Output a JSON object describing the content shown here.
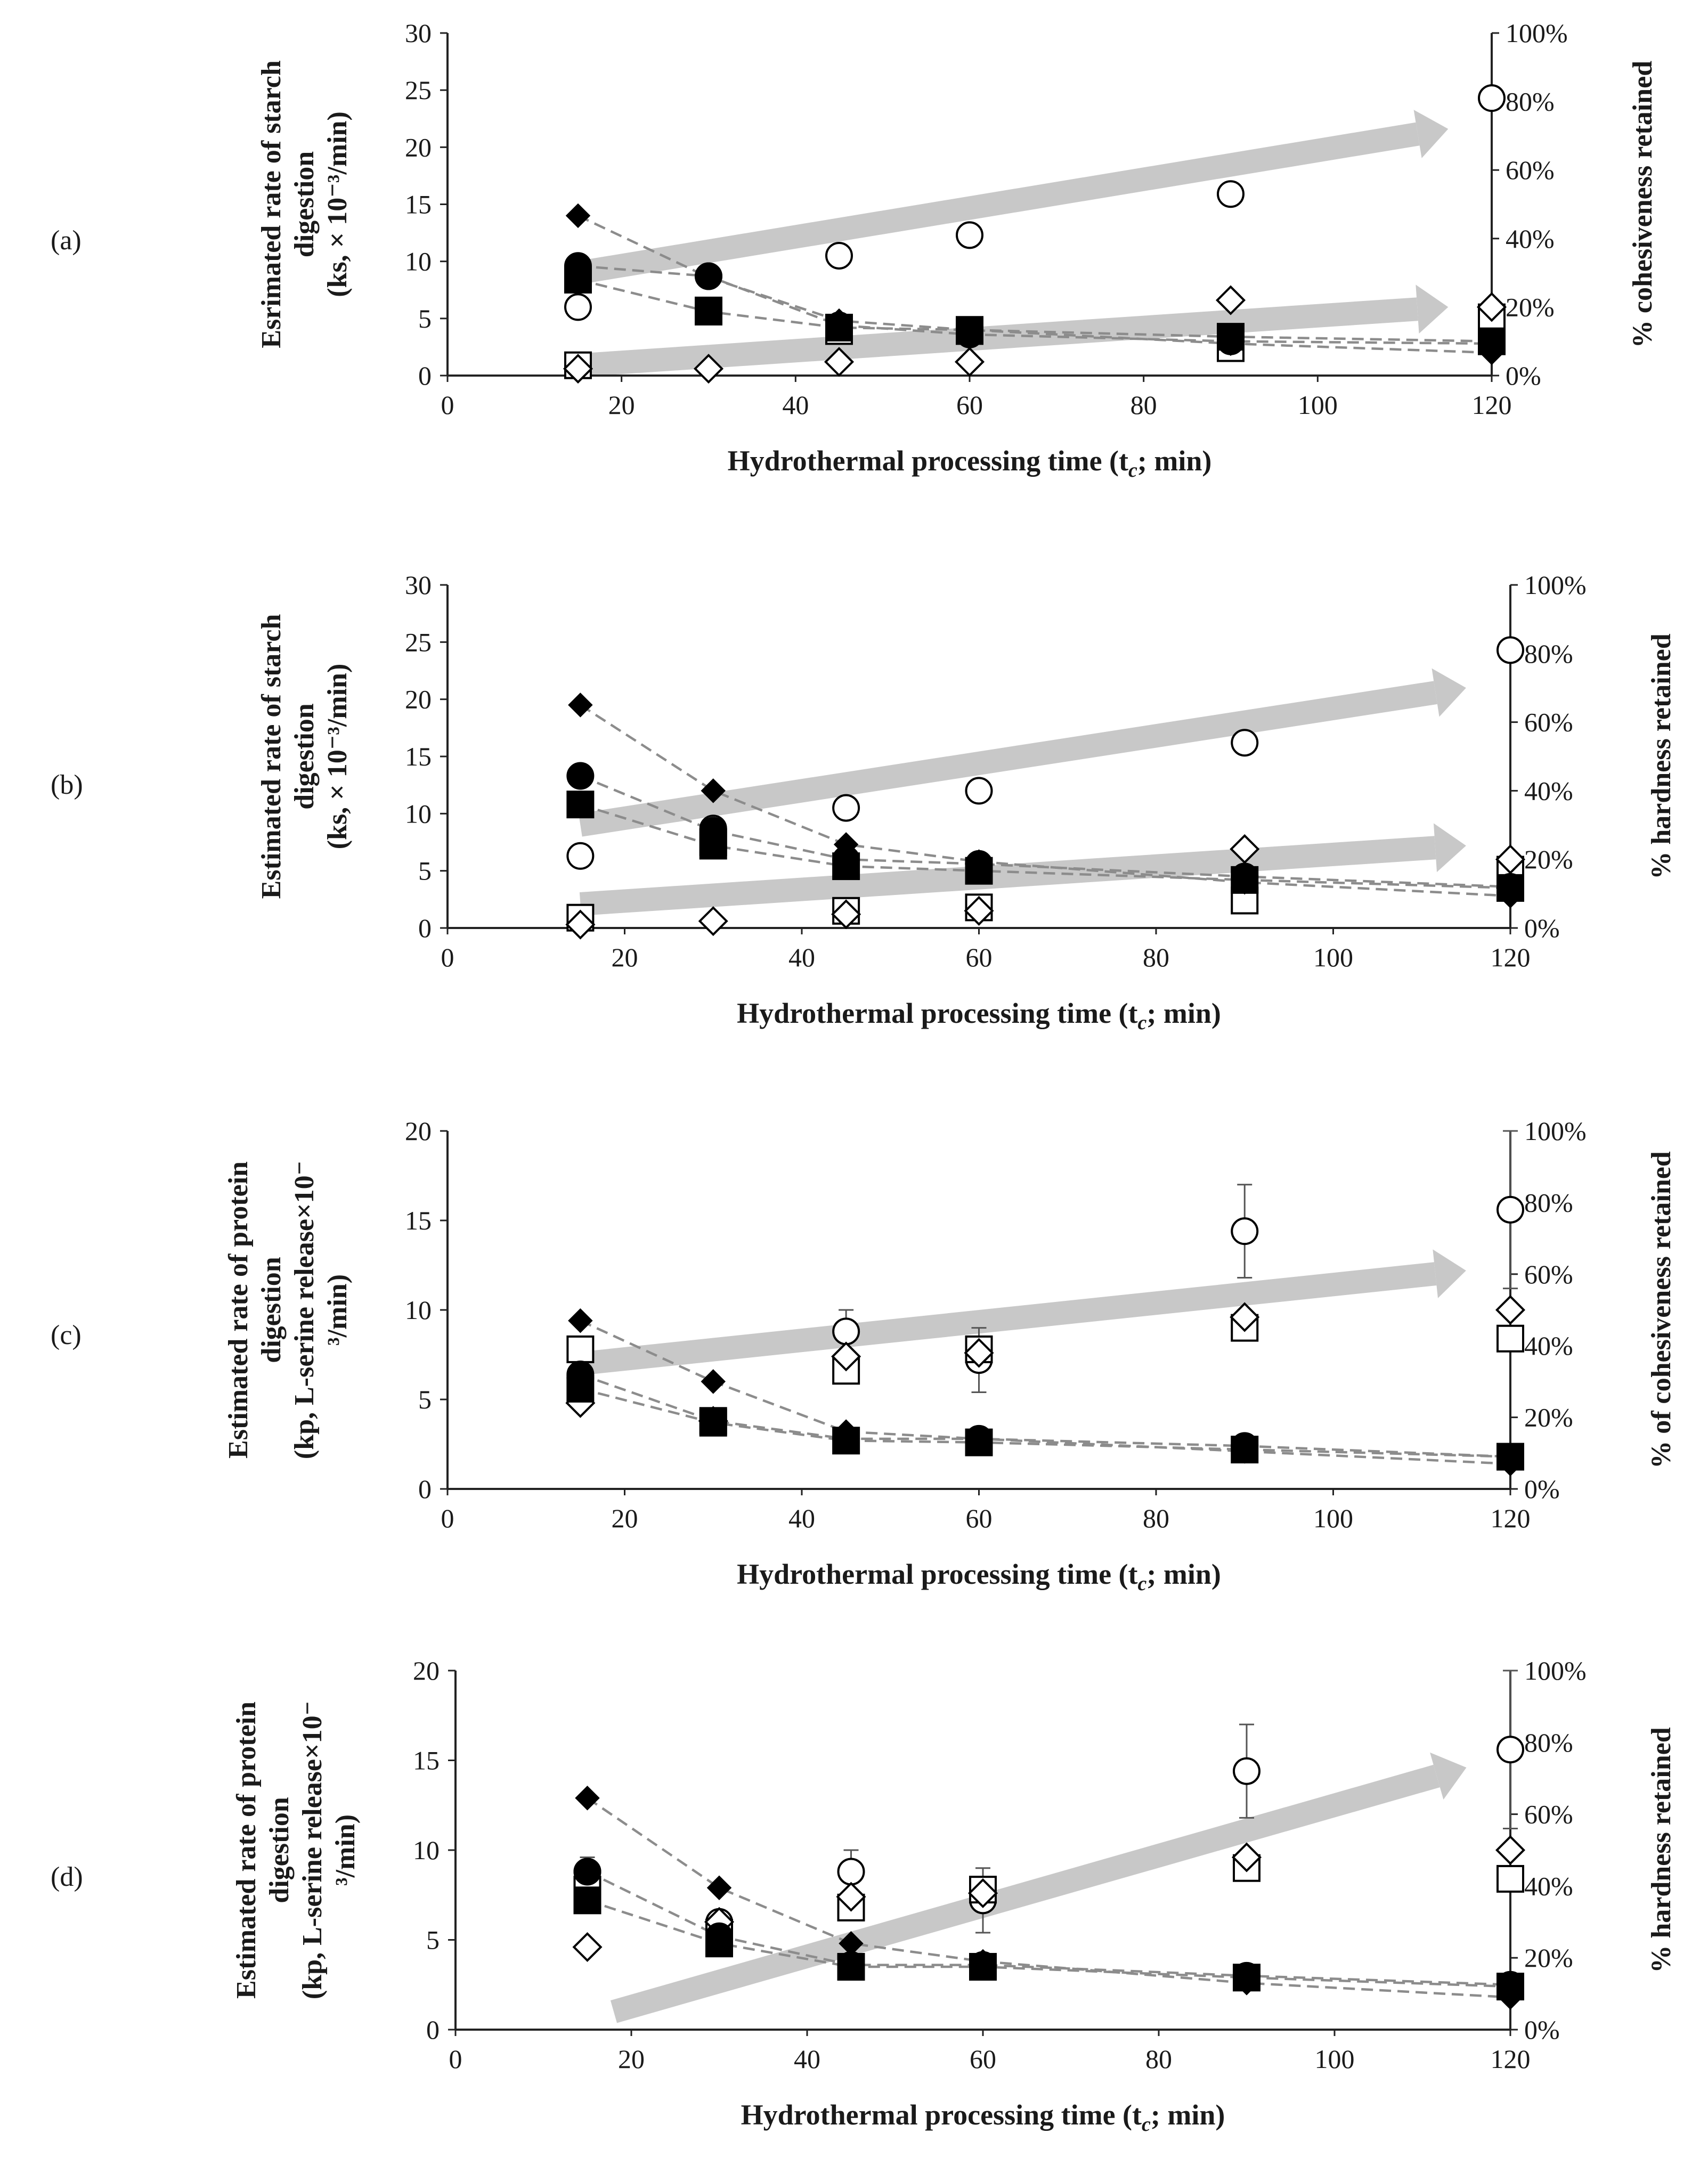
{
  "figure": {
    "x_axis_title": "Hydrothermal processing time (t",
    "x_axis_title_sub": "c",
    "x_axis_title_end": "; min)"
  },
  "colors": {
    "arrow": "#c8c8c8",
    "trend": "#8c8c8c",
    "marker_fill": "#000000",
    "marker_open": "#ffffff",
    "marker_stroke": "#000000"
  },
  "chart_data": [
    {
      "panel": "(a)",
      "type": "scatter",
      "title": "",
      "xlabel": "Hydrothermal processing time (tc; min)",
      "ylabel_lines": [
        "Esrimated rate of starch",
        "digestion",
        "(ks, × 10⁻³/min)"
      ],
      "y2label": "% cohesiveness retained",
      "xlim": [
        0,
        120
      ],
      "xticks": [
        0,
        20,
        40,
        60,
        80,
        100,
        120
      ],
      "ylim": [
        0,
        30
      ],
      "yticks": [
        0,
        5,
        10,
        15,
        20,
        25,
        30
      ],
      "y2ticks": [
        "0%",
        "20%",
        "40%",
        "60%",
        "80%",
        "100%"
      ],
      "x": [
        15,
        30,
        45,
        60,
        90,
        120
      ],
      "series": [
        {
          "name": "k filled diamond",
          "marker": "diamond",
          "filled": true,
          "axis": "left",
          "values": [
            14.0,
            8.6,
            4.8,
            4.0,
            2.8,
            2.0
          ]
        },
        {
          "name": "k filled circle",
          "marker": "circle",
          "filled": true,
          "axis": "left",
          "values": [
            9.6,
            8.7,
            4.4,
            3.6,
            3.0,
            2.8
          ]
        },
        {
          "name": "k filled square",
          "marker": "square",
          "filled": true,
          "axis": "left",
          "values": [
            8.4,
            5.6,
            4.2,
            4.0,
            3.4,
            3.0
          ]
        },
        {
          "name": "retained open circle",
          "marker": "circle",
          "filled": false,
          "axis": "right",
          "values": [
            20,
            29,
            35,
            41,
            53,
            81
          ]
        },
        {
          "name": "retained open square",
          "marker": "square",
          "filled": false,
          "axis": "right",
          "values": [
            3,
            19,
            13,
            13,
            8,
            17
          ]
        },
        {
          "name": "retained open diamond",
          "marker": "diamond",
          "filled": false,
          "axis": "right",
          "values": [
            2,
            2,
            4,
            4,
            22,
            20
          ]
        }
      ],
      "trendlines": [
        {
          "x": [
            15,
            30,
            45,
            60,
            90,
            120
          ],
          "values": [
            14.0,
            8.6,
            4.8,
            4.0,
            2.8,
            2.0
          ]
        },
        {
          "x": [
            15,
            30,
            45,
            60,
            90,
            120
          ],
          "values": [
            9.6,
            8.7,
            4.4,
            3.6,
            3.0,
            2.8
          ]
        },
        {
          "x": [
            15,
            30,
            45,
            60,
            90,
            120
          ],
          "values": [
            8.4,
            5.6,
            4.2,
            4.0,
            3.4,
            3.0
          ]
        }
      ],
      "arrows": [
        {
          "x": [
            15,
            115
          ],
          "values": [
            30,
            72
          ]
        },
        {
          "x": [
            15,
            115
          ],
          "values": [
            3,
            20
          ]
        }
      ]
    },
    {
      "panel": "(b)",
      "type": "scatter",
      "title": "",
      "xlabel": "Hydrothermal processing time (tc; min)",
      "ylabel_lines": [
        "Estimated rate of starch",
        "digestion",
        "(ks, × 10⁻³/min)"
      ],
      "y2label": "% hardness retained",
      "xlim": [
        0,
        120
      ],
      "xticks": [
        0,
        20,
        40,
        60,
        80,
        100,
        120
      ],
      "ylim": [
        0,
        30
      ],
      "yticks": [
        0,
        5,
        10,
        15,
        20,
        25,
        30
      ],
      "y2ticks": [
        "0%",
        "20%",
        "40%",
        "60%",
        "80%",
        "100%"
      ],
      "x": [
        15,
        30,
        45,
        60,
        90,
        120
      ],
      "series": [
        {
          "name": "k filled diamond",
          "marker": "diamond",
          "filled": true,
          "axis": "left",
          "values": [
            19.5,
            12.0,
            7.3,
            5.8,
            4.0,
            2.8
          ]
        },
        {
          "name": "k filled circle",
          "marker": "circle",
          "filled": true,
          "axis": "left",
          "values": [
            13.3,
            8.5,
            6.0,
            5.6,
            4.5,
            3.6
          ]
        },
        {
          "name": "k filled square",
          "marker": "square",
          "filled": true,
          "axis": "left",
          "values": [
            10.8,
            7.2,
            5.4,
            5.0,
            4.2,
            3.5
          ]
        },
        {
          "name": "retained open circle",
          "marker": "circle",
          "filled": false,
          "axis": "right",
          "values": [
            21,
            29,
            35,
            40,
            54,
            81
          ]
        },
        {
          "name": "retained open square",
          "marker": "square",
          "filled": false,
          "axis": "right",
          "values": [
            3,
            25,
            5,
            6,
            8,
            17
          ]
        },
        {
          "name": "retained open diamond",
          "marker": "diamond",
          "filled": false,
          "axis": "right",
          "values": [
            1,
            2,
            4,
            5,
            23,
            20
          ]
        }
      ],
      "trendlines": [
        {
          "x": [
            15,
            30,
            45,
            60,
            90,
            120
          ],
          "values": [
            19.5,
            12.0,
            7.3,
            5.8,
            4.0,
            2.8
          ]
        },
        {
          "x": [
            15,
            30,
            45,
            60,
            90,
            120
          ],
          "values": [
            13.3,
            8.5,
            6.0,
            5.6,
            4.5,
            3.6
          ]
        },
        {
          "x": [
            15,
            30,
            45,
            60,
            90,
            120
          ],
          "values": [
            10.8,
            7.2,
            5.4,
            5.0,
            4.2,
            3.5
          ]
        }
      ],
      "arrows": [
        {
          "x": [
            15,
            115
          ],
          "values": [
            30,
            70
          ]
        },
        {
          "x": [
            15,
            115
          ],
          "values": [
            7,
            24
          ]
        }
      ]
    },
    {
      "panel": "(c)",
      "type": "scatter",
      "title": "",
      "xlabel": "Hydrothermal processing time (tc; min)",
      "ylabel_lines": [
        "Estimated rate of protein",
        "digestion",
        "(kp, L-serine release×10⁻",
        "³/min)"
      ],
      "y2label": "% of cohesiveness retained",
      "xlim": [
        0,
        120
      ],
      "xticks": [
        0,
        20,
        40,
        60,
        80,
        100,
        120
      ],
      "ylim": [
        0,
        20
      ],
      "yticks": [
        0,
        5,
        10,
        15,
        20
      ],
      "y2ticks": [
        "0%",
        "20%",
        "40%",
        "60%",
        "80%",
        "100%"
      ],
      "x": [
        15,
        30,
        45,
        60,
        90,
        120
      ],
      "series": [
        {
          "name": "k filled diamond",
          "marker": "diamond",
          "filled": true,
          "axis": "left",
          "values": [
            9.4,
            6.0,
            3.2,
            2.8,
            2.1,
            1.4
          ]
        },
        {
          "name": "k filled circle",
          "marker": "circle",
          "filled": true,
          "axis": "left",
          "values": [
            6.4,
            3.8,
            2.8,
            2.8,
            2.4,
            1.8
          ]
        },
        {
          "name": "k filled square",
          "marker": "square",
          "filled": true,
          "axis": "left",
          "values": [
            5.6,
            3.7,
            2.7,
            2.6,
            2.2,
            1.8
          ]
        },
        {
          "name": "retained open circle",
          "marker": "circle",
          "filled": false,
          "axis": "right",
          "values": [
            31,
            19,
            44,
            36,
            72,
            78
          ]
        },
        {
          "name": "retained open square",
          "marker": "square",
          "filled": false,
          "axis": "right",
          "values": [
            39,
            19,
            33,
            39,
            45,
            42
          ]
        },
        {
          "name": "retained open diamond",
          "marker": "diamond",
          "filled": false,
          "axis": "right",
          "values": [
            24,
            19,
            37,
            38,
            48,
            50
          ]
        }
      ],
      "error_bars": [
        {
          "x": 45,
          "value": 44,
          "err": 6
        },
        {
          "x": 60,
          "value": 36,
          "err": 9
        },
        {
          "x": 90,
          "value": 72,
          "err": 13
        },
        {
          "x": 120,
          "value": 78,
          "err": 22
        }
      ],
      "trendlines": [
        {
          "x": [
            15,
            30,
            45,
            60,
            90,
            120
          ],
          "values": [
            9.4,
            6.0,
            3.2,
            2.8,
            2.1,
            1.4
          ]
        },
        {
          "x": [
            15,
            30,
            45,
            60,
            90,
            120
          ],
          "values": [
            6.4,
            3.8,
            2.8,
            2.8,
            2.4,
            1.8
          ]
        },
        {
          "x": [
            15,
            30,
            45,
            60,
            90,
            120
          ],
          "values": [
            5.6,
            3.7,
            2.7,
            2.6,
            2.2,
            1.8
          ]
        }
      ],
      "arrows": [
        {
          "x": [
            15,
            115
          ],
          "values": [
            35,
            61
          ]
        }
      ]
    },
    {
      "panel": "(d)",
      "type": "scatter",
      "title": "",
      "xlabel": "Hydrothermal processing time (tc; min)",
      "ylabel_lines": [
        "Estimated rate of protein",
        "digestion",
        "(kp, L-serine release×10⁻",
        "³/min)"
      ],
      "y2label": "% hardness retained",
      "xlim": [
        0,
        120
      ],
      "xticks": [
        0,
        20,
        40,
        60,
        80,
        100,
        120
      ],
      "ylim": [
        0,
        20
      ],
      "yticks": [
        0,
        5,
        10,
        15,
        20
      ],
      "y2ticks": [
        "0%",
        "20%",
        "40%",
        "60%",
        "80%",
        "100%"
      ],
      "x": [
        15,
        30,
        45,
        60,
        90,
        120
      ],
      "series": [
        {
          "name": "k filled diamond",
          "marker": "diamond",
          "filled": true,
          "axis": "left",
          "values": [
            12.9,
            7.9,
            4.8,
            3.8,
            2.6,
            1.8
          ]
        },
        {
          "name": "k filled circle",
          "marker": "circle",
          "filled": true,
          "axis": "left",
          "values": [
            8.8,
            5.2,
            3.6,
            3.6,
            3.0,
            2.5
          ]
        },
        {
          "name": "k filled square",
          "marker": "square",
          "filled": true,
          "axis": "left",
          "values": [
            7.2,
            4.8,
            3.5,
            3.5,
            2.9,
            2.4
          ]
        },
        {
          "name": "retained open circle",
          "marker": "circle",
          "filled": false,
          "axis": "right",
          "values": [
            44,
            30,
            44,
            36,
            72,
            78
          ]
        },
        {
          "name": "retained open square",
          "marker": "square",
          "filled": false,
          "axis": "right",
          "values": [
            39,
            27,
            34,
            39,
            45,
            42
          ]
        },
        {
          "name": "retained open diamond",
          "marker": "diamond",
          "filled": false,
          "axis": "right",
          "values": [
            23,
            30,
            37,
            38,
            48,
            50
          ]
        }
      ],
      "error_bars": [
        {
          "x": 15,
          "value": 44,
          "err": 4
        },
        {
          "x": 45,
          "value": 44,
          "err": 6
        },
        {
          "x": 60,
          "value": 36,
          "err": 9
        },
        {
          "x": 90,
          "value": 72,
          "err": 13
        },
        {
          "x": 120,
          "value": 78,
          "err": 22
        }
      ],
      "trendlines": [
        {
          "x": [
            15,
            30,
            45,
            60,
            90,
            120
          ],
          "values": [
            12.9,
            7.9,
            4.8,
            3.8,
            2.6,
            1.8
          ]
        },
        {
          "x": [
            15,
            30,
            45,
            60,
            90,
            120
          ],
          "values": [
            8.8,
            5.2,
            3.6,
            3.6,
            3.0,
            2.5
          ]
        },
        {
          "x": [
            15,
            30,
            45,
            60,
            90,
            120
          ],
          "values": [
            7.2,
            4.8,
            3.5,
            3.5,
            2.9,
            2.4
          ]
        }
      ],
      "arrows": [
        {
          "x": [
            18,
            115
          ],
          "values": [
            5,
            73
          ]
        }
      ]
    }
  ]
}
